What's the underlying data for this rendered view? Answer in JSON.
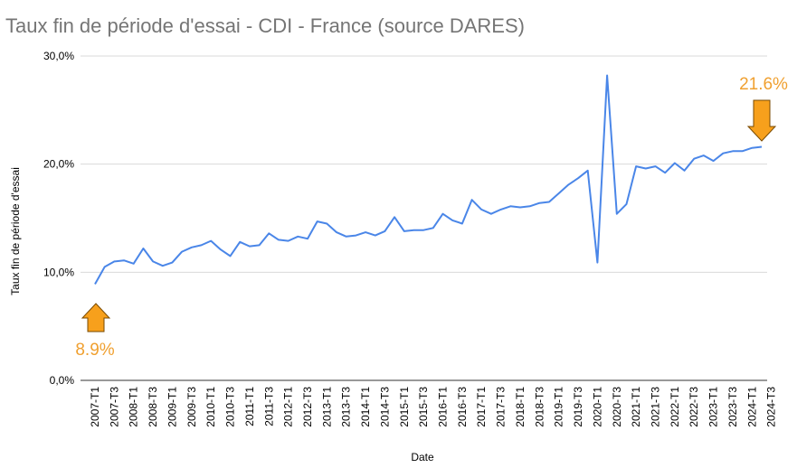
{
  "chart_data": {
    "type": "line",
    "title": "Taux fin de période d'essai - CDI - France (source DARES)",
    "xlabel": "Date",
    "ylabel": "Taux fin de période d'essai",
    "ylim": [
      0,
      30
    ],
    "yticks": [
      {
        "value": 0,
        "label": "0,0%"
      },
      {
        "value": 10,
        "label": "10,0%"
      },
      {
        "value": 20,
        "label": "20,0%"
      },
      {
        "value": 30,
        "label": "30,0%"
      }
    ],
    "x_tick_labels": [
      "2007-T1",
      "2007-T3",
      "2008-T1",
      "2008-T3",
      "2009-T1",
      "2009-T3",
      "2010-T1",
      "2010-T3",
      "2011-T1",
      "2011-T3",
      "2012-T1",
      "2012-T3",
      "2013-T1",
      "2013-T3",
      "2014-T1",
      "2014-T3",
      "2015-T1",
      "2015-T3",
      "2016-T1",
      "2016-T3",
      "2017-T1",
      "2017-T3",
      "2018-T1",
      "2018-T3",
      "2019-T1",
      "2019-T3",
      "2020-T1",
      "2020-T3",
      "2021-T1",
      "2021-T3",
      "2022-T1",
      "2022-T3",
      "2023-T1",
      "2023-T3",
      "2024-T1",
      "2024-T3"
    ],
    "grid": "horizontal",
    "series": [
      {
        "color": "#4a86e8",
        "values": [
          8.9,
          10.5,
          11.0,
          11.1,
          10.8,
          12.2,
          11.0,
          10.6,
          10.9,
          11.9,
          12.3,
          12.5,
          12.9,
          12.1,
          11.5,
          12.8,
          12.4,
          12.5,
          13.6,
          13.0,
          12.9,
          13.3,
          13.1,
          14.7,
          14.5,
          13.7,
          13.3,
          13.4,
          13.7,
          13.4,
          13.8,
          15.1,
          13.8,
          13.9,
          13.9,
          14.1,
          15.4,
          14.8,
          14.5,
          16.7,
          15.8,
          15.4,
          15.8,
          16.1,
          16.0,
          16.1,
          16.4,
          16.5,
          17.3,
          18.1,
          18.7,
          19.4,
          10.9,
          28.2,
          15.4,
          16.3,
          19.8,
          19.6,
          19.8,
          19.2,
          20.1,
          19.4,
          20.5,
          20.8,
          20.3,
          21.0,
          21.2,
          21.2,
          21.5,
          21.6
        ]
      }
    ],
    "annotations": [
      {
        "label": "8.9%",
        "color": "#f0a030",
        "arrow_color": "#f7a01c",
        "arrow_border": "#7a4a00"
      },
      {
        "label": "21.6%",
        "color": "#f0a030",
        "arrow_color": "#f7a01c",
        "arrow_border": "#7a4a00"
      }
    ]
  }
}
